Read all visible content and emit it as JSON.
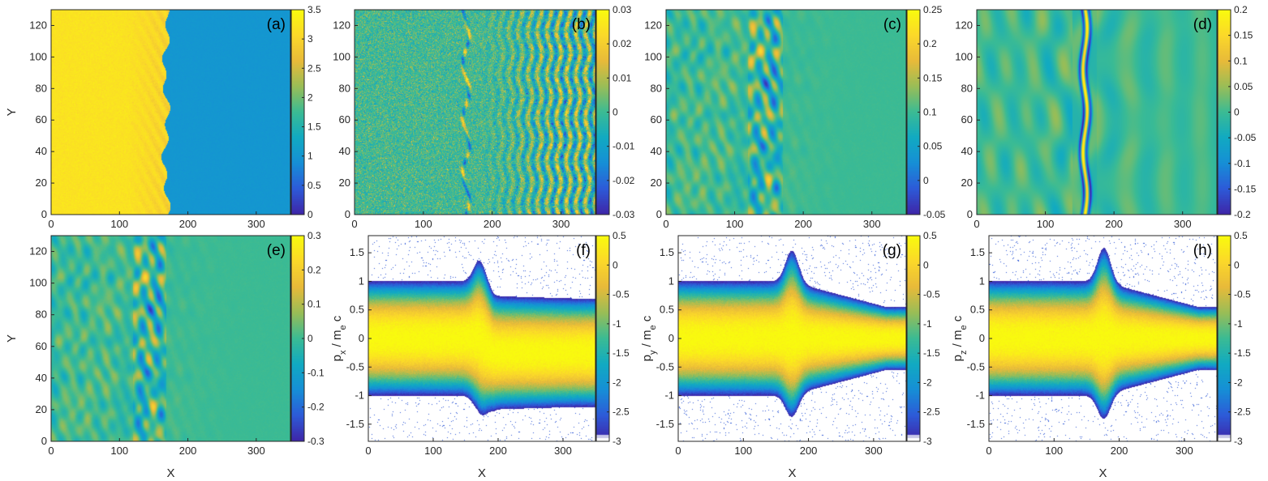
{
  "colors": {
    "colormap": [
      "#3e26a8",
      "#2d5bd8",
      "#168fd6",
      "#11aac2",
      "#3bbb94",
      "#99bd57",
      "#e8ba3a",
      "#fbd82a",
      "#f9fb0e"
    ]
  },
  "chart_data": [
    {
      "type": "heatmap",
      "label": "(a)",
      "xlabel": "",
      "ylabel": "Y",
      "xlim": [
        0,
        350
      ],
      "ylim": [
        0,
        130
      ],
      "xticks": [
        "0",
        "100",
        "200",
        "300"
      ],
      "xtick_values": [
        0,
        100,
        200,
        300
      ],
      "yticks": [
        "0",
        "20",
        "40",
        "60",
        "80",
        "100",
        "120"
      ],
      "ytick_values": [
        0,
        20,
        40,
        60,
        80,
        100,
        120
      ],
      "clim": [
        0,
        3.5
      ],
      "cticks": [
        "0",
        "0.5",
        "1",
        "1.5",
        "2",
        "2.5",
        "3",
        "3.5"
      ],
      "ctick_values": [
        0,
        0.5,
        1,
        1.5,
        2,
        2.5,
        3,
        3.5
      ],
      "pattern": "density",
      "front_x": 168,
      "upstream_value": 3.2,
      "downstream_value": 1.0
    },
    {
      "type": "heatmap",
      "label": "(b)",
      "xlabel": "",
      "ylabel": "",
      "xlim": [
        0,
        350
      ],
      "ylim": [
        0,
        130
      ],
      "xticks": [
        "0",
        "100",
        "200",
        "300"
      ],
      "xtick_values": [
        0,
        100,
        200,
        300
      ],
      "yticks": [
        "0",
        "20",
        "40",
        "60",
        "80",
        "100",
        "120"
      ],
      "ytick_values": [
        0,
        20,
        40,
        60,
        80,
        100,
        120
      ],
      "clim": [
        -0.03,
        0.03
      ],
      "cticks": [
        "-0.03",
        "-0.02",
        "-0.01",
        "0",
        "0.01",
        "0.02",
        "0.03"
      ],
      "ctick_values": [
        -0.03,
        -0.02,
        -0.01,
        0,
        0.01,
        0.02,
        0.03
      ],
      "pattern": "noise_waves",
      "front_x": 162
    },
    {
      "type": "heatmap",
      "label": "(c)",
      "xlabel": "",
      "ylabel": "",
      "xlim": [
        0,
        350
      ],
      "ylim": [
        0,
        130
      ],
      "xticks": [
        "0",
        "100",
        "200",
        "300"
      ],
      "xtick_values": [
        0,
        100,
        200,
        300
      ],
      "yticks": [
        "0",
        "20",
        "40",
        "60",
        "80",
        "100",
        "120"
      ],
      "ytick_values": [
        0,
        20,
        40,
        60,
        80,
        100,
        120
      ],
      "clim": [
        -0.05,
        0.25
      ],
      "cticks": [
        "-0.05",
        "0",
        "0.05",
        "0.1",
        "0.15",
        "0.2",
        "0.25"
      ],
      "ctick_values": [
        -0.05,
        0,
        0.05,
        0.1,
        0.15,
        0.2,
        0.25
      ],
      "pattern": "turbulent",
      "front_x": 160,
      "base_value": 0.1
    },
    {
      "type": "heatmap",
      "label": "(d)",
      "xlabel": "",
      "ylabel": "",
      "xlim": [
        0,
        350
      ],
      "ylim": [
        0,
        130
      ],
      "xticks": [
        "0",
        "100",
        "200",
        "300"
      ],
      "xtick_values": [
        0,
        100,
        200,
        300
      ],
      "yticks": [
        "0",
        "20",
        "40",
        "60",
        "80",
        "100",
        "120"
      ],
      "ytick_values": [
        0,
        20,
        40,
        60,
        80,
        100,
        120
      ],
      "clim": [
        -0.2,
        0.2
      ],
      "cticks": [
        "-0.2",
        "-0.15",
        "-0.1",
        "-0.05",
        "0",
        "0.05",
        "0.1",
        "0.15",
        "0.2"
      ],
      "ctick_values": [
        -0.2,
        -0.15,
        -0.1,
        -0.05,
        0,
        0.05,
        0.1,
        0.15,
        0.2
      ],
      "pattern": "stripes",
      "front_x": 155
    },
    {
      "type": "heatmap",
      "label": "(e)",
      "xlabel": "X",
      "ylabel": "Y",
      "xlim": [
        0,
        350
      ],
      "ylim": [
        0,
        130
      ],
      "xticks": [
        "0",
        "100",
        "200",
        "300"
      ],
      "xtick_values": [
        0,
        100,
        200,
        300
      ],
      "yticks": [
        "0",
        "20",
        "40",
        "60",
        "80",
        "100",
        "120"
      ],
      "ytick_values": [
        0,
        20,
        40,
        60,
        80,
        100,
        120
      ],
      "clim": [
        -0.3,
        0.3
      ],
      "cticks": [
        "-0.3",
        "-0.2",
        "-0.1",
        "0",
        "0.1",
        "0.2",
        "0.3"
      ],
      "ctick_values": [
        -0.3,
        -0.2,
        -0.1,
        0,
        0.1,
        0.2,
        0.3
      ],
      "pattern": "turbulent",
      "front_x": 158,
      "base_value": 0.0
    },
    {
      "type": "phase_space",
      "label": "(f)",
      "xlabel": "X",
      "ylabel_main": "p",
      "ylabel_sub": "x",
      "ylabel_tail": " / m",
      "ylabel_sub2": "e",
      "ylabel_end": " c",
      "xlim": [
        0,
        350
      ],
      "ylim": [
        -1.8,
        1.8
      ],
      "xticks": [
        "0",
        "100",
        "200",
        "300"
      ],
      "xtick_values": [
        0,
        100,
        200,
        300
      ],
      "yticks": [
        "-1.5",
        "-1",
        "-0.5",
        "0",
        "0.5",
        "1",
        "1.5"
      ],
      "ytick_values": [
        -1.5,
        -1,
        -0.5,
        0,
        0.5,
        1,
        1.5
      ],
      "clim": [
        -3,
        0.5
      ],
      "cticks": [
        "-3",
        "-2.5",
        "-2",
        "-1.5",
        "-1",
        "-0.5",
        "0",
        "0.5"
      ],
      "ctick_values": [
        -3,
        -2.5,
        -2,
        -1.5,
        -1,
        -0.5,
        0,
        0.5
      ],
      "shock_x": 168,
      "upstream_core": 0.55,
      "upstream_edge": 1.0,
      "downstream_edge": 0.95,
      "downstream_shift": -0.25,
      "peak": 1.4
    },
    {
      "type": "phase_space",
      "label": "(g)",
      "xlabel": "X",
      "ylabel_main": "p",
      "ylabel_sub": "y",
      "ylabel_tail": " / m",
      "ylabel_sub2": "e",
      "ylabel_end": " c",
      "xlim": [
        0,
        350
      ],
      "ylim": [
        -1.8,
        1.8
      ],
      "xticks": [
        "0",
        "100",
        "200",
        "300"
      ],
      "xtick_values": [
        0,
        100,
        200,
        300
      ],
      "yticks": [
        "-1.5",
        "-1",
        "-0.5",
        "0",
        "0.5",
        "1",
        "1.5"
      ],
      "ytick_values": [
        -1.5,
        -1,
        -0.5,
        0,
        0.5,
        1,
        1.5
      ],
      "clim": [
        -3,
        0.5
      ],
      "cticks": [
        "-3",
        "-2.5",
        "-2",
        "-1.5",
        "-1",
        "-0.5",
        "0",
        "0.5"
      ],
      "ctick_values": [
        -3,
        -2.5,
        -2,
        -1.5,
        -1,
        -0.5,
        0,
        0.5
      ],
      "shock_x": 170,
      "upstream_core": 0.55,
      "upstream_edge": 1.0,
      "downstream_edge": 0.55,
      "downstream_shift": 0.0,
      "peak": 1.55
    },
    {
      "type": "phase_space",
      "label": "(h)",
      "xlabel": "X",
      "ylabel_main": "p",
      "ylabel_sub": "z",
      "ylabel_tail": " / m",
      "ylabel_sub2": "e",
      "ylabel_end": " c",
      "xlim": [
        0,
        350
      ],
      "ylim": [
        -1.8,
        1.8
      ],
      "xticks": [
        "0",
        "100",
        "200",
        "300"
      ],
      "xtick_values": [
        0,
        100,
        200,
        300
      ],
      "yticks": [
        "-1.5",
        "-1",
        "-0.5",
        "0",
        "0.5",
        "1",
        "1.5"
      ],
      "ytick_values": [
        -1.5,
        -1,
        -0.5,
        0,
        0.5,
        1,
        1.5
      ],
      "clim": [
        -3,
        0.5
      ],
      "cticks": [
        "-3",
        "-2.5",
        "-2",
        "-1.5",
        "-1",
        "-0.5",
        "0",
        "0.5"
      ],
      "ctick_values": [
        -3,
        -2.5,
        -2,
        -1.5,
        -1,
        -0.5,
        0,
        0.5
      ],
      "shock_x": 172,
      "upstream_core": 0.55,
      "upstream_edge": 1.0,
      "downstream_edge": 0.55,
      "downstream_shift": 0.0,
      "peak": 1.6
    }
  ]
}
